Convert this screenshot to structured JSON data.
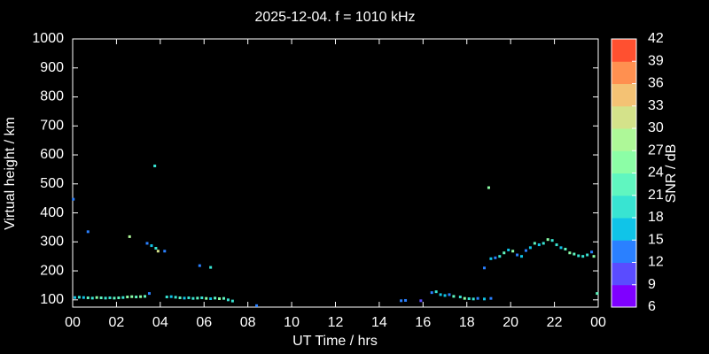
{
  "chart_data": {
    "type": "scatter",
    "title": "2025-12-04. f = 1010 kHz",
    "x_label": "UT Time / hrs",
    "y_label": "Virtual height / km",
    "colorbar_label": "SNR / dB",
    "xlim": [
      0,
      24
    ],
    "xticks": [
      {
        "value": 0,
        "label": "00"
      },
      {
        "value": 2,
        "label": "02"
      },
      {
        "value": 4,
        "label": "04"
      },
      {
        "value": 6,
        "label": "06"
      },
      {
        "value": 8,
        "label": "08"
      },
      10,
      12,
      14,
      16,
      18,
      20,
      22,
      {
        "value": 24,
        "label": "00"
      }
    ],
    "ylim": [
      75,
      1000
    ],
    "yticks": [
      100,
      200,
      300,
      400,
      500,
      600,
      700,
      800,
      900,
      1000
    ],
    "clim": [
      6,
      42
    ],
    "cticks": [
      6,
      9,
      12,
      15,
      18,
      21,
      24,
      27,
      30,
      33,
      36,
      39,
      42
    ],
    "colorscale": [
      "#7f00ff",
      "#5a4cff",
      "#2a80ff",
      "#10c4e8",
      "#38e4d2",
      "#60f6c0",
      "#8cfea6",
      "#aef898",
      "#d4e28a",
      "#f4c274",
      "#ff9050",
      "#ff5030"
    ],
    "x": [
      0.03,
      0.1,
      0.3,
      0.5,
      0.7,
      0.9,
      1.1,
      1.3,
      1.5,
      1.7,
      1.9,
      2.1,
      2.3,
      2.5,
      2.7,
      2.9,
      3.1,
      3.3,
      3.5,
      4.3,
      4.5,
      4.7,
      4.9,
      5.1,
      5.3,
      5.5,
      5.7,
      5.9,
      6.1,
      6.3,
      6.5,
      6.7,
      6.9,
      7.1,
      7.3,
      0.7,
      2.6,
      3.4,
      3.6,
      3.8,
      3.9,
      4.2,
      3.75,
      5.8,
      6.3,
      8.4,
      15.0,
      15.2,
      15.9,
      16.4,
      16.6,
      16.8,
      17.0,
      17.2,
      17.4,
      17.7,
      17.9,
      18.1,
      18.3,
      18.5,
      18.8,
      19.1,
      18.8,
      19.0,
      19.1,
      19.3,
      19.5,
      19.7,
      19.9,
      20.1,
      20.3,
      20.5,
      20.7,
      20.9,
      21.1,
      21.3,
      21.5,
      21.7,
      21.9,
      22.1,
      22.3,
      22.5,
      22.7,
      22.9,
      23.1,
      23.3,
      23.5,
      23.7,
      23.8,
      23.95
    ],
    "y": [
      447,
      108,
      109,
      108,
      107,
      106,
      108,
      107,
      106,
      107,
      106,
      107,
      108,
      110,
      111,
      110,
      111,
      112,
      122,
      110,
      111,
      109,
      107,
      106,
      107,
      105,
      106,
      107,
      105,
      104,
      106,
      104,
      105,
      100,
      96,
      335,
      318,
      295,
      287,
      278,
      268,
      268,
      562,
      218,
      212,
      80,
      97,
      98,
      97,
      125,
      128,
      118,
      115,
      118,
      112,
      110,
      105,
      104,
      103,
      105,
      103,
      105,
      210,
      487,
      242,
      245,
      250,
      262,
      272,
      268,
      255,
      250,
      270,
      280,
      295,
      290,
      295,
      308,
      305,
      290,
      280,
      275,
      262,
      258,
      252,
      250,
      255,
      265,
      250,
      122
    ],
    "snr": [
      12,
      17,
      20,
      17,
      21,
      20,
      24,
      22,
      20,
      18,
      21,
      23,
      20,
      24,
      26,
      23,
      25,
      22,
      14,
      20,
      17,
      19,
      22,
      16,
      18,
      20,
      21,
      19,
      24,
      17,
      22,
      26,
      23,
      20,
      18,
      14,
      28,
      12,
      15,
      19,
      30,
      12,
      19,
      13,
      18,
      12,
      12,
      13,
      11,
      13,
      19,
      17,
      16,
      13,
      21,
      18,
      24,
      20,
      18,
      12,
      15,
      13,
      13,
      26,
      16,
      14,
      18,
      22,
      15,
      26,
      13,
      17,
      13,
      16,
      21,
      15,
      19,
      24,
      18,
      20,
      17,
      22,
      24,
      21,
      19,
      18,
      20,
      14,
      26,
      21
    ]
  }
}
